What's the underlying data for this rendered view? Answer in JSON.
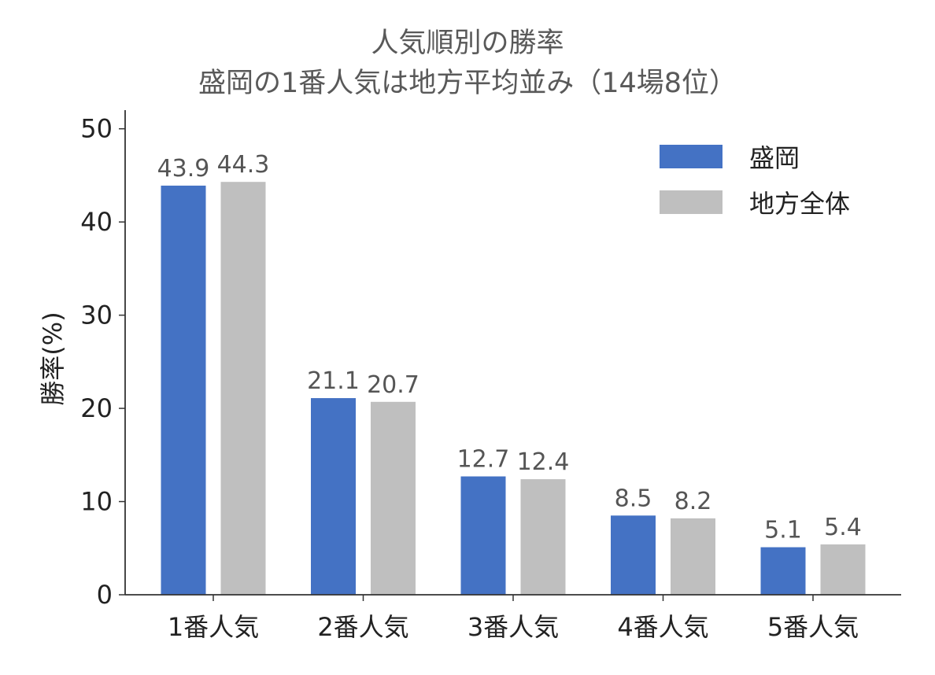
{
  "chart_data": {
    "type": "bar",
    "title": "人気順別の勝率",
    "subtitle": "盛岡の1番人気は地方平均並み（14場8位）",
    "xlabel": "",
    "ylabel": "勝率(%)",
    "categories": [
      "1番人気",
      "2番人気",
      "3番人気",
      "4番人気",
      "5番人気"
    ],
    "series": [
      {
        "name": "盛岡",
        "color": "#4472c4",
        "values": [
          43.9,
          21.1,
          12.7,
          8.5,
          5.1
        ]
      },
      {
        "name": "地方全体",
        "color": "#bfbfbf",
        "values": [
          44.3,
          20.7,
          12.4,
          8.2,
          5.4
        ]
      }
    ],
    "ylim": [
      0,
      52
    ],
    "yticks": [
      0,
      10,
      20,
      30,
      40,
      50
    ],
    "grid": false,
    "legend": "top-right"
  }
}
